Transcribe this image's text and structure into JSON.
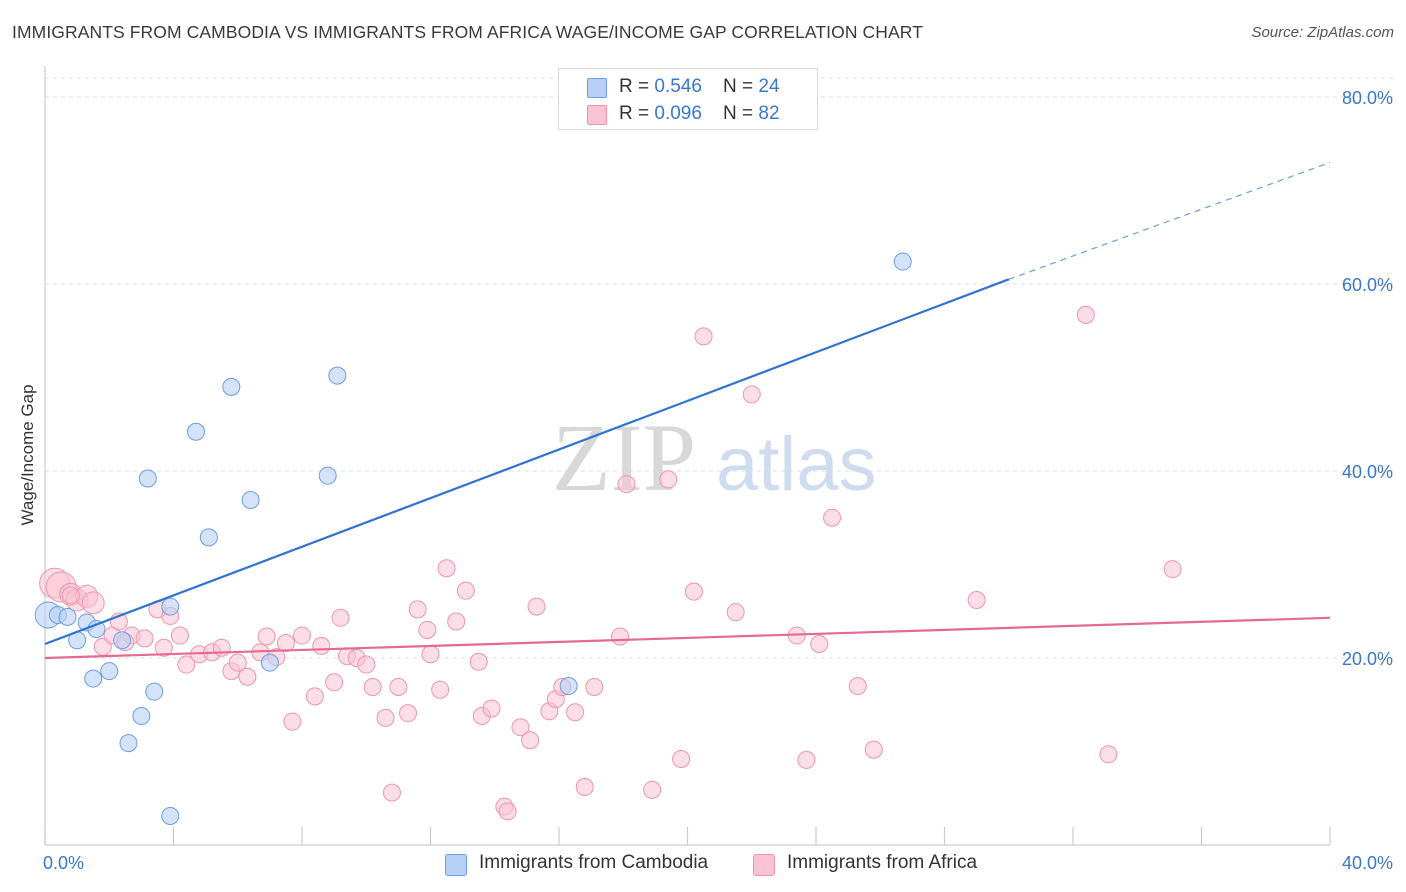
{
  "title": "IMMIGRANTS FROM CAMBODIA VS IMMIGRANTS FROM AFRICA WAGE/INCOME GAP CORRELATION CHART",
  "source": "Source: ZipAtlas.com",
  "watermark": {
    "part1": "ZIP",
    "part2": "atlas"
  },
  "legend": {
    "rows": [
      {
        "r_label": "R = ",
        "r_value": "0.546",
        "n_label": "N = ",
        "n_value": "24"
      },
      {
        "r_label": "R = ",
        "r_value": "0.096",
        "n_label": "N = ",
        "n_value": "82"
      }
    ]
  },
  "bottom_legend": [
    {
      "label": "Immigrants from Cambodia"
    },
    {
      "label": "Immigrants from Africa"
    }
  ],
  "chart_data": {
    "type": "scatter",
    "title": "IMMIGRANTS FROM CAMBODIA VS IMMIGRANTS FROM AFRICA WAGE/INCOME GAP CORRELATION CHART",
    "xlabel": "",
    "ylabel": "Wage/Income Gap",
    "xlim": [
      0,
      40
    ],
    "ylim": [
      0,
      83
    ],
    "x_tick_labels": [
      "0.0%",
      "40.0%"
    ],
    "y_ticks": [
      20,
      40,
      60,
      80
    ],
    "y_tick_labels": [
      "20.0%",
      "40.0%",
      "60.0%",
      "80.0%"
    ],
    "grid": true,
    "colors": {
      "cambodia_fill": "#b8d0f5",
      "cambodia_edge": "#6f9ee0",
      "cambodia_line": "#2f74d0",
      "africa_fill": "#f9c3d3",
      "africa_edge": "#ee94b1",
      "africa_line": "#e46a92",
      "axis_label": "#3a78c9",
      "grid": "#dddddd"
    },
    "series": [
      {
        "name": "Immigrants from Cambodia",
        "r": 0.546,
        "n": 24,
        "trend": {
          "x": [
            0,
            30
          ],
          "y": [
            21.5,
            60.5
          ],
          "dashed_to": [
            40,
            73
          ]
        },
        "points": [
          [
            0.1,
            24.6
          ],
          [
            0.4,
            24.6
          ],
          [
            0.7,
            24.4
          ],
          [
            1.0,
            21.9
          ],
          [
            1.3,
            23.8
          ],
          [
            1.6,
            23.1
          ],
          [
            1.5,
            17.8
          ],
          [
            2.0,
            18.6
          ],
          [
            2.4,
            21.9
          ],
          [
            2.6,
            10.9
          ],
          [
            3.0,
            13.8
          ],
          [
            3.2,
            39.2
          ],
          [
            3.4,
            16.4
          ],
          [
            3.9,
            25.5
          ],
          [
            4.7,
            44.2
          ],
          [
            5.1,
            32.9
          ],
          [
            5.8,
            49.0
          ],
          [
            6.4,
            36.9
          ],
          [
            7.0,
            19.5
          ],
          [
            8.8,
            39.5
          ],
          [
            9.1,
            50.2
          ],
          [
            16.3,
            17.0
          ],
          [
            3.9,
            3.1
          ],
          [
            26.7,
            62.4
          ]
        ]
      },
      {
        "name": "Immigrants from Africa",
        "r": 0.096,
        "n": 82,
        "trend": {
          "x": [
            0,
            40
          ],
          "y": [
            20.0,
            24.3
          ]
        },
        "points": [
          [
            0.3,
            28.0
          ],
          [
            0.5,
            27.6
          ],
          [
            0.8,
            26.8
          ],
          [
            1.0,
            26.2
          ],
          [
            1.3,
            26.6
          ],
          [
            1.5,
            25.9
          ],
          [
            1.8,
            21.2
          ],
          [
            2.1,
            22.4
          ],
          [
            2.3,
            23.9
          ],
          [
            2.7,
            22.4
          ],
          [
            3.1,
            22.1
          ],
          [
            3.5,
            25.2
          ],
          [
            3.7,
            21.1
          ],
          [
            3.9,
            24.5
          ],
          [
            4.2,
            22.4
          ],
          [
            4.4,
            19.3
          ],
          [
            4.8,
            20.4
          ],
          [
            5.2,
            20.6
          ],
          [
            5.5,
            21.1
          ],
          [
            5.8,
            18.6
          ],
          [
            6.0,
            19.5
          ],
          [
            6.3,
            18.0
          ],
          [
            6.7,
            20.6
          ],
          [
            6.9,
            22.3
          ],
          [
            7.2,
            20.1
          ],
          [
            7.5,
            21.6
          ],
          [
            7.7,
            13.2
          ],
          [
            8.0,
            22.4
          ],
          [
            8.4,
            15.9
          ],
          [
            8.6,
            21.3
          ],
          [
            9.0,
            17.4
          ],
          [
            9.2,
            24.3
          ],
          [
            9.4,
            20.2
          ],
          [
            9.7,
            20.0
          ],
          [
            10.0,
            19.3
          ],
          [
            10.2,
            16.9
          ],
          [
            10.6,
            13.6
          ],
          [
            10.8,
            5.6
          ],
          [
            11.0,
            16.9
          ],
          [
            11.3,
            14.1
          ],
          [
            11.6,
            25.2
          ],
          [
            11.9,
            23.0
          ],
          [
            12.0,
            20.4
          ],
          [
            12.3,
            16.6
          ],
          [
            12.5,
            29.6
          ],
          [
            12.8,
            23.9
          ],
          [
            13.1,
            27.2
          ],
          [
            13.5,
            19.6
          ],
          [
            13.6,
            13.8
          ],
          [
            13.9,
            14.6
          ],
          [
            14.3,
            4.1
          ],
          [
            14.4,
            3.6
          ],
          [
            14.8,
            12.6
          ],
          [
            15.1,
            11.2
          ],
          [
            15.3,
            25.5
          ],
          [
            15.7,
            14.3
          ],
          [
            15.9,
            15.6
          ],
          [
            16.1,
            16.9
          ],
          [
            16.5,
            14.2
          ],
          [
            16.8,
            6.2
          ],
          [
            17.1,
            16.9
          ],
          [
            17.9,
            22.3
          ],
          [
            18.9,
            5.9
          ],
          [
            19.4,
            39.1
          ],
          [
            19.8,
            9.2
          ],
          [
            20.2,
            27.1
          ],
          [
            20.5,
            54.4
          ],
          [
            21.5,
            24.9
          ],
          [
            22.0,
            48.2
          ],
          [
            23.4,
            22.4
          ],
          [
            23.7,
            9.1
          ],
          [
            24.1,
            21.5
          ],
          [
            24.5,
            35.0
          ],
          [
            25.3,
            17.0
          ],
          [
            25.8,
            10.2
          ],
          [
            18.1,
            38.6
          ],
          [
            29.0,
            26.2
          ],
          [
            32.4,
            56.7
          ],
          [
            33.1,
            9.7
          ],
          [
            35.1,
            29.5
          ],
          [
            0.8,
            26.7
          ],
          [
            2.5,
            21.7
          ]
        ]
      }
    ]
  }
}
